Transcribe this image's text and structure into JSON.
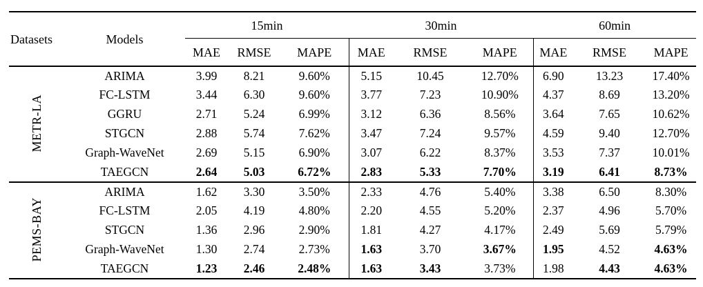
{
  "table": {
    "colors": {
      "text": "#000000",
      "background": "#ffffff",
      "rule": "#000000"
    },
    "header": {
      "datasets_label": "Datasets",
      "models_label": "Models",
      "groups": [
        {
          "label": "15min"
        },
        {
          "label": "30min"
        },
        {
          "label": "60min"
        }
      ],
      "metrics": [
        "MAE",
        "RMSE",
        "MAPE"
      ]
    },
    "sections": [
      {
        "dataset": "METR-LA",
        "rows": [
          {
            "model": "ARIMA",
            "values": [
              "3.99",
              "8.21",
              "9.60%",
              "5.15",
              "10.45",
              "12.70%",
              "6.90",
              "13.23",
              "17.40%"
            ],
            "bold": [
              0,
              0,
              0,
              0,
              0,
              0,
              0,
              0,
              0
            ]
          },
          {
            "model": "FC-LSTM",
            "values": [
              "3.44",
              "6.30",
              "9.60%",
              "3.77",
              "7.23",
              "10.90%",
              "4.37",
              "8.69",
              "13.20%"
            ],
            "bold": [
              0,
              0,
              0,
              0,
              0,
              0,
              0,
              0,
              0
            ]
          },
          {
            "model": "GGRU",
            "values": [
              "2.71",
              "5.24",
              "6.99%",
              "3.12",
              "6.36",
              "8.56%",
              "3.64",
              "7.65",
              "10.62%"
            ],
            "bold": [
              0,
              0,
              0,
              0,
              0,
              0,
              0,
              0,
              0
            ]
          },
          {
            "model": "STGCN",
            "values": [
              "2.88",
              "5.74",
              "7.62%",
              "3.47",
              "7.24",
              "9.57%",
              "4.59",
              "9.40",
              "12.70%"
            ],
            "bold": [
              0,
              0,
              0,
              0,
              0,
              0,
              0,
              0,
              0
            ]
          },
          {
            "model": "Graph-WaveNet",
            "values": [
              "2.69",
              "5.15",
              "6.90%",
              "3.07",
              "6.22",
              "8.37%",
              "3.53",
              "7.37",
              "10.01%"
            ],
            "bold": [
              0,
              0,
              0,
              0,
              0,
              0,
              0,
              0,
              0
            ]
          },
          {
            "model": "TAEGCN",
            "values": [
              "2.64",
              "5.03",
              "6.72%",
              "2.83",
              "5.33",
              "7.70%",
              "3.19",
              "6.41",
              "8.73%"
            ],
            "bold": [
              1,
              1,
              1,
              1,
              1,
              1,
              1,
              1,
              1
            ]
          }
        ]
      },
      {
        "dataset": "PEMS-BAY",
        "rows": [
          {
            "model": "ARIMA",
            "values": [
              "1.62",
              "3.30",
              "3.50%",
              "2.33",
              "4.76",
              "5.40%",
              "3.38",
              "6.50",
              "8.30%"
            ],
            "bold": [
              0,
              0,
              0,
              0,
              0,
              0,
              0,
              0,
              0
            ]
          },
          {
            "model": "FC-LSTM",
            "values": [
              "2.05",
              "4.19",
              "4.80%",
              "2.20",
              "4.55",
              "5.20%",
              "2.37",
              "4.96",
              "5.70%"
            ],
            "bold": [
              0,
              0,
              0,
              0,
              0,
              0,
              0,
              0,
              0
            ]
          },
          {
            "model": "STGCN",
            "values": [
              "1.36",
              "2.96",
              "2.90%",
              "1.81",
              "4.27",
              "4.17%",
              "2.49",
              "5.69",
              "5.79%"
            ],
            "bold": [
              0,
              0,
              0,
              0,
              0,
              0,
              0,
              0,
              0
            ]
          },
          {
            "model": "Graph-WaveNet",
            "values": [
              "1.30",
              "2.74",
              "2.73%",
              "1.63",
              "3.70",
              "3.67%",
              "1.95",
              "4.52",
              "4.63%"
            ],
            "bold": [
              0,
              0,
              0,
              1,
              0,
              1,
              1,
              0,
              1
            ]
          },
          {
            "model": "TAEGCN",
            "values": [
              "1.23",
              "2.46",
              "2.48%",
              "1.63",
              "3.43",
              "3.73%",
              "1.98",
              "4.43",
              "4.63%"
            ],
            "bold": [
              1,
              1,
              1,
              1,
              1,
              0,
              0,
              1,
              1
            ]
          }
        ]
      }
    ]
  }
}
